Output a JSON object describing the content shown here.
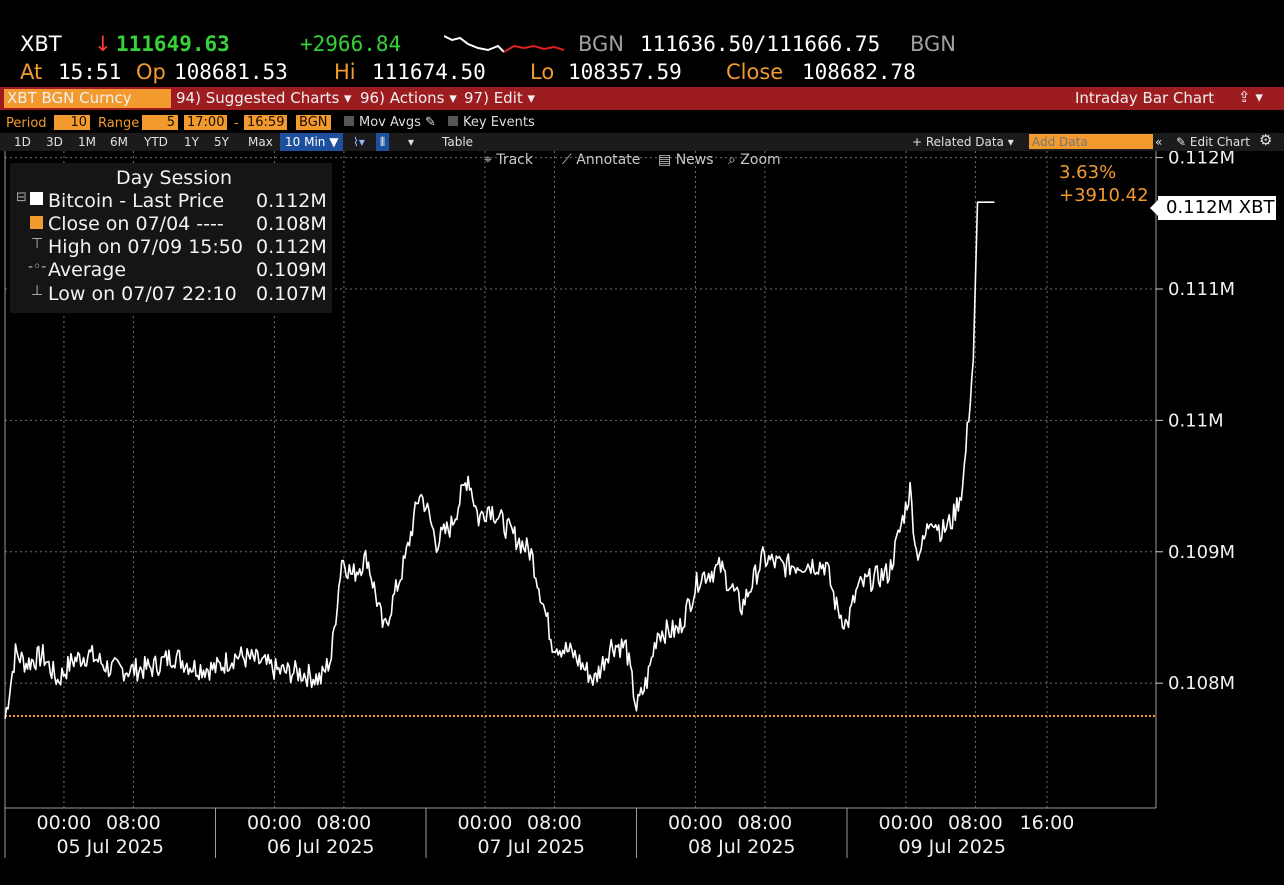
{
  "header": {
    "ticker": "XBT",
    "direction_arrow": "↓",
    "last_price": "111649.63",
    "change": "+2966.84",
    "source1": "BGN",
    "bid_ask": "111636.50/111666.75",
    "source2": "BGN",
    "at_label": "At",
    "at_time": "15:51",
    "op_label": "Op",
    "op_value": "108681.53",
    "hi_label": "Hi",
    "hi_value": "111674.50",
    "lo_label": "Lo",
    "lo_value": "108357.59",
    "close_label": "Close",
    "close_value": "108682.78"
  },
  "menu": {
    "security": "XBT BGN Curncy",
    "suggested": "94) Suggested Charts ▾",
    "actions": "96) Actions ▾",
    "edit": "97) Edit ▾",
    "chart_type": "Intraday Bar Chart"
  },
  "options": {
    "period_label": "Period",
    "period_value": "10",
    "range_label": "Range",
    "range_value": "5",
    "time_from": "17:00",
    "dash": "-",
    "time_to": "16:59",
    "src": "BGN",
    "mov_avgs": "Mov Avgs",
    "key_events": "Key Events"
  },
  "buttons": {
    "ranges": [
      "1D",
      "3D",
      "1M",
      "6M",
      "YTD",
      "1Y",
      "5Y",
      "Max"
    ],
    "interval": "10 Min ▼",
    "table": "Table",
    "related": "+ Related Data ▾",
    "add_data_placeholder": "Add Data",
    "edit_chart": "Edit Chart"
  },
  "tools": {
    "track": "Track",
    "annotate": "Annotate",
    "news": "News",
    "zoom": "Zoom"
  },
  "legend": {
    "title": "Day Session",
    "rows": [
      {
        "label": "Bitcoin - Last Price",
        "value": "0.112M"
      },
      {
        "label": "Close on 07/04 ----",
        "value": "0.108M"
      },
      {
        "label": "High on 07/09 15:50",
        "value": "0.112M"
      },
      {
        "label": "Average",
        "value": "0.109M"
      },
      {
        "label": "Low on 07/07 22:10",
        "value": "0.107M"
      }
    ]
  },
  "annotation": {
    "pct": "3.63%",
    "chg": "+3910.42",
    "last_tag": "0.112M XBT"
  },
  "colors": {
    "accent": "#f29a2e",
    "menubar": "#9c1c20",
    "line": "#ffffff",
    "up": "#35d23a",
    "down": "#ff3b30"
  },
  "chart_data": {
    "type": "line",
    "series": [
      {
        "name": "Bitcoin - Last Price",
        "x_days": [
          0,
          0.05,
          0.1,
          0.18,
          0.25,
          0.32,
          0.4,
          0.5,
          0.6,
          0.7,
          0.8,
          0.9,
          1.0,
          1.1,
          1.2,
          1.3,
          1.4,
          1.5,
          1.55,
          1.6,
          1.65,
          1.72,
          1.8,
          1.9,
          1.97,
          2.0,
          2.05,
          2.12,
          2.2,
          2.25,
          2.3,
          2.4,
          2.5,
          2.6,
          2.7,
          2.8,
          2.88,
          2.95,
          3.0,
          3.05,
          3.1,
          3.2,
          3.3,
          3.4,
          3.5,
          3.6,
          3.7,
          3.8,
          3.9,
          3.95,
          4.0,
          4.05,
          4.1,
          4.2,
          4.3,
          4.33,
          4.36,
          4.4,
          4.45,
          4.5,
          4.55,
          4.6,
          4.62,
          4.7
        ],
        "values": [
          107730,
          108230,
          108150,
          108210,
          108020,
          108170,
          108220,
          108110,
          108100,
          108120,
          108210,
          108120,
          108110,
          108210,
          108170,
          108090,
          108080,
          108030,
          108200,
          108950,
          108820,
          108960,
          108400,
          108930,
          109450,
          109350,
          109070,
          109200,
          109580,
          109250,
          109350,
          109150,
          108990,
          108310,
          108220,
          108020,
          108290,
          108280,
          107810,
          108020,
          108390,
          108400,
          108810,
          108880,
          108580,
          108950,
          108890,
          108910,
          108900,
          108580,
          108440,
          108720,
          108780,
          108840,
          109470,
          108990,
          109050,
          109280,
          109150,
          109240,
          109500,
          110460,
          111660,
          111660
        ]
      }
    ],
    "reference": {
      "name": "Close on 07/04",
      "value": 107750
    },
    "x_tick_labels": [
      "00:00",
      "08:00",
      "00:00",
      "08:00",
      "00:00",
      "08:00",
      "00:00",
      "08:00",
      "00:00",
      "08:00",
      "16:00"
    ],
    "x_tick_days": [
      0.28,
      0.61,
      1.28,
      1.61,
      2.28,
      2.61,
      3.28,
      3.61,
      4.28,
      4.61,
      4.95
    ],
    "x_date_labels": [
      "05 Jul 2025",
      "06 Jul 2025",
      "07 Jul 2025",
      "08 Jul 2025",
      "09 Jul 2025"
    ],
    "y_tick_labels": [
      "0.108M",
      "0.109M",
      "0.11M",
      "0.111M",
      "0.112M"
    ],
    "y_tick_values": [
      108000,
      109000,
      110000,
      111000,
      112000
    ],
    "ylim": [
      107050,
      112050
    ],
    "xlim": [
      0,
      5.55
    ],
    "grid": true
  }
}
